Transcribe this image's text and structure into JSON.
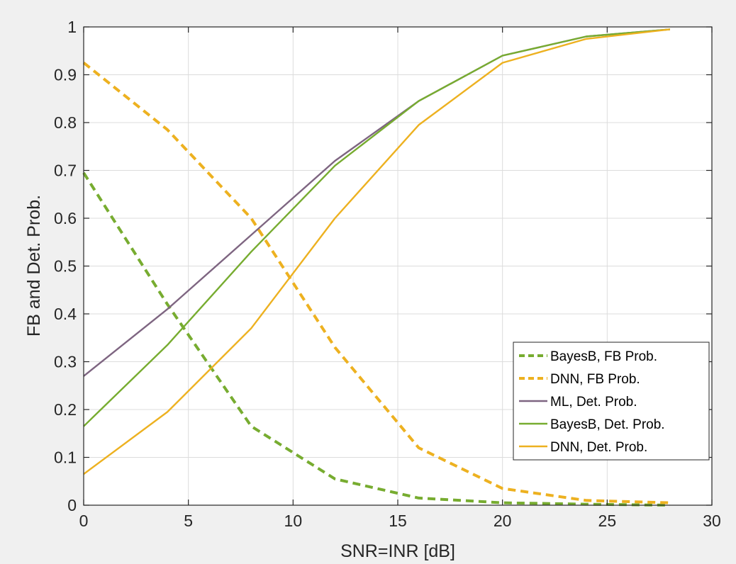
{
  "chart_data": {
    "type": "line",
    "xlabel": "SNR=INR [dB]",
    "ylabel": "FB and Det. Prob.",
    "xlim": [
      0,
      30
    ],
    "ylim": [
      0,
      1
    ],
    "xticks": [
      0,
      5,
      10,
      15,
      20,
      25,
      30
    ],
    "yticks": [
      0,
      0.1,
      0.2,
      0.3,
      0.4,
      0.5,
      0.6,
      0.7,
      0.8,
      0.9,
      1
    ],
    "xtick_labels": [
      "0",
      "5",
      "10",
      "15",
      "20",
      "25",
      "30"
    ],
    "ytick_labels": [
      "0",
      "0.1",
      "0.2",
      "0.3",
      "0.4",
      "0.5",
      "0.6",
      "0.7",
      "0.8",
      "0.9",
      "1"
    ],
    "grid": true,
    "legend_position": "bottom-right",
    "x": [
      0,
      4,
      8,
      12,
      16,
      20,
      24,
      28
    ],
    "series": [
      {
        "name": "BayesB, FB Prob.",
        "style": "dashed",
        "color": "#77ac30",
        "values": [
          0.695,
          0.42,
          0.165,
          0.055,
          0.015,
          0.005,
          0.002,
          0.0
        ]
      },
      {
        "name": "DNN, FB Prob.",
        "style": "dashed",
        "color": "#edb120",
        "values": [
          0.925,
          0.785,
          0.6,
          0.33,
          0.12,
          0.035,
          0.01,
          0.005
        ]
      },
      {
        "name": "ML, Det. Prob.",
        "style": "solid",
        "color": "#7e6581",
        "values": [
          0.27,
          0.41,
          0.565,
          0.72,
          0.845,
          0.94,
          0.98,
          0.995
        ]
      },
      {
        "name": "BayesB, Det. Prob.",
        "style": "solid",
        "color": "#77ac30",
        "values": [
          0.165,
          0.335,
          0.53,
          0.71,
          0.845,
          0.94,
          0.98,
          0.995
        ]
      },
      {
        "name": "DNN, Det. Prob.",
        "style": "solid",
        "color": "#edb120",
        "values": [
          0.065,
          0.195,
          0.37,
          0.6,
          0.795,
          0.925,
          0.975,
          0.995
        ]
      }
    ]
  }
}
